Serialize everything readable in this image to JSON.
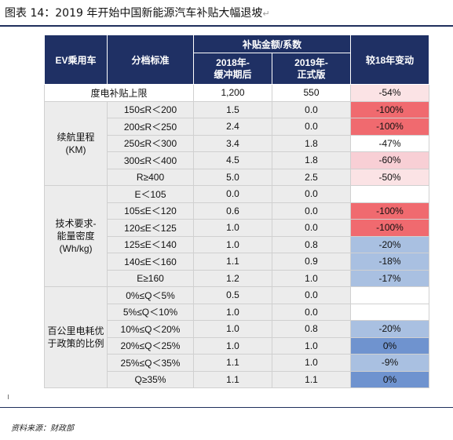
{
  "caption": "图表 14：2019 年开始中国新能源汽车补贴大幅退坡",
  "return_mark": "↵",
  "header": {
    "ev_type": "EV乘用车",
    "grading_standard": "分档标准",
    "subsidy_group": "补贴金额/系数",
    "col_2018_line1": "2018年-",
    "col_2018_line2": "缓冲期后",
    "col_2019_line1": "2019年-",
    "col_2019_line2": "正式版",
    "change": "较18年变动"
  },
  "cap_row": {
    "label": "度电补贴上限",
    "v2018": "1,200",
    "v2019": "550",
    "change": "-54%"
  },
  "groups": [
    {
      "label_lines": [
        "续航里程",
        "(KM)"
      ],
      "rows": [
        {
          "std": "150≤R＜200",
          "v2018": "1.5",
          "v2019": "0.0",
          "change": "-100%",
          "tone": "red"
        },
        {
          "std": "200≤R＜250",
          "v2018": "2.4",
          "v2019": "0.0",
          "change": "-100%",
          "tone": "red"
        },
        {
          "std": "250≤R＜300",
          "v2018": "3.4",
          "v2019": "1.8",
          "change": "-47%",
          "tone": "white"
        },
        {
          "std": "300≤R＜400",
          "v2018": "4.5",
          "v2019": "1.8",
          "change": "-60%",
          "tone": "pink"
        },
        {
          "std": "R≥400",
          "v2018": "5.0",
          "v2019": "2.5",
          "change": "-50%",
          "tone": "lightpink"
        }
      ]
    },
    {
      "label_lines": [
        "技术要求-",
        "能量密度",
        "(Wh/kg)"
      ],
      "rows": [
        {
          "std": "E＜105",
          "v2018": "0.0",
          "v2019": "0.0",
          "change": "",
          "tone": "white"
        },
        {
          "std": "105≤E＜120",
          "v2018": "0.6",
          "v2019": "0.0",
          "change": "-100%",
          "tone": "red"
        },
        {
          "std": "120≤E＜125",
          "v2018": "1.0",
          "v2019": "0.0",
          "change": "-100%",
          "tone": "red"
        },
        {
          "std": "125≤E＜140",
          "v2018": "1.0",
          "v2019": "0.8",
          "change": "-20%",
          "tone": "blue"
        },
        {
          "std": "140≤E＜160",
          "v2018": "1.1",
          "v2019": "0.9",
          "change": "-18%",
          "tone": "blue"
        },
        {
          "std": "E≥160",
          "v2018": "1.2",
          "v2019": "1.0",
          "change": "-17%",
          "tone": "blue"
        }
      ]
    },
    {
      "label_lines": [
        "百公里电耗优",
        "于政策的比例"
      ],
      "rows": [
        {
          "std": "0%≤Q＜5%",
          "v2018": "0.5",
          "v2019": "0.0",
          "change": "",
          "tone": "white"
        },
        {
          "std": "5%≤Q＜10%",
          "v2018": "1.0",
          "v2019": "0.0",
          "change": "",
          "tone": "white"
        },
        {
          "std": "10%≤Q＜20%",
          "v2018": "1.0",
          "v2019": "0.8",
          "change": "-20%",
          "tone": "blue"
        },
        {
          "std": "20%≤Q＜25%",
          "v2018": "1.0",
          "v2019": "1.0",
          "change": "0%",
          "tone": "darkblue"
        },
        {
          "std": "25%≤Q＜35%",
          "v2018": "1.1",
          "v2019": "1.0",
          "change": "-9%",
          "tone": "blue"
        },
        {
          "std": "Q≥35%",
          "v2018": "1.1",
          "v2019": "1.1",
          "change": "0%",
          "tone": "darkblue"
        }
      ]
    }
  ],
  "source": "资料来源：财政部"
}
